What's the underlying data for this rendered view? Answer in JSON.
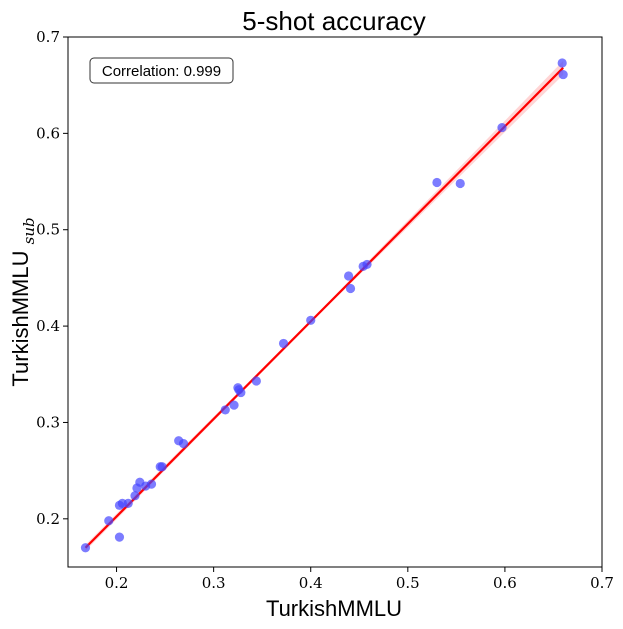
{
  "chart_data": {
    "type": "scatter",
    "title": "5-shot accuracy",
    "xlabel": "TurkishMMLU",
    "ylabel": "TurkishMMLU",
    "ylabel_subscript": "sub",
    "xlim": [
      0.15,
      0.7
    ],
    "ylim": [
      0.15,
      0.7
    ],
    "xticks": [
      0.2,
      0.3,
      0.4,
      0.5,
      0.6,
      0.7
    ],
    "yticks": [
      0.2,
      0.3,
      0.4,
      0.5,
      0.6,
      0.7
    ],
    "xtick_labels": [
      "0.2",
      "0.3",
      "0.4",
      "0.5",
      "0.6",
      "0.7"
    ],
    "ytick_labels": [
      "0.2",
      "0.3",
      "0.4",
      "0.5",
      "0.6",
      "0.7"
    ],
    "grid": false,
    "annotation": "Correlation: 0.999",
    "point_color": "#4444ff",
    "line_color": "#ff0000",
    "band_color": "#ffb3b3",
    "fit_line": {
      "x": [
        0.168,
        0.66
      ],
      "y": [
        0.17,
        0.668
      ]
    },
    "points": [
      {
        "x": 0.168,
        "y": 0.17
      },
      {
        "x": 0.192,
        "y": 0.198
      },
      {
        "x": 0.203,
        "y": 0.181
      },
      {
        "x": 0.203,
        "y": 0.214
      },
      {
        "x": 0.206,
        "y": 0.216
      },
      {
        "x": 0.212,
        "y": 0.216
      },
      {
        "x": 0.219,
        "y": 0.224
      },
      {
        "x": 0.221,
        "y": 0.232
      },
      {
        "x": 0.224,
        "y": 0.238
      },
      {
        "x": 0.23,
        "y": 0.234
      },
      {
        "x": 0.236,
        "y": 0.236
      },
      {
        "x": 0.245,
        "y": 0.254
      },
      {
        "x": 0.247,
        "y": 0.254
      },
      {
        "x": 0.264,
        "y": 0.281
      },
      {
        "x": 0.269,
        "y": 0.278
      },
      {
        "x": 0.312,
        "y": 0.313
      },
      {
        "x": 0.321,
        "y": 0.318
      },
      {
        "x": 0.325,
        "y": 0.336
      },
      {
        "x": 0.326,
        "y": 0.334
      },
      {
        "x": 0.328,
        "y": 0.331
      },
      {
        "x": 0.344,
        "y": 0.343
      },
      {
        "x": 0.372,
        "y": 0.382
      },
      {
        "x": 0.4,
        "y": 0.406
      },
      {
        "x": 0.439,
        "y": 0.452
      },
      {
        "x": 0.441,
        "y": 0.439
      },
      {
        "x": 0.454,
        "y": 0.462
      },
      {
        "x": 0.458,
        "y": 0.464
      },
      {
        "x": 0.53,
        "y": 0.549
      },
      {
        "x": 0.554,
        "y": 0.548
      },
      {
        "x": 0.597,
        "y": 0.606
      },
      {
        "x": 0.659,
        "y": 0.673
      },
      {
        "x": 0.66,
        "y": 0.661
      }
    ]
  }
}
